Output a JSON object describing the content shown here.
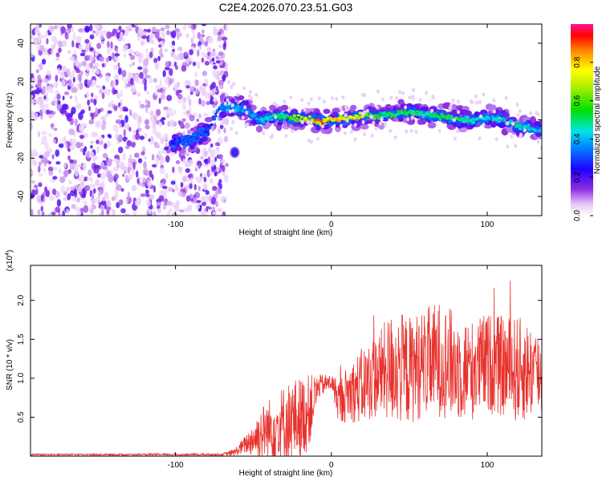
{
  "title": "C2E4.2026.070.23.51.G03",
  "colors": {
    "snr_line": "#e8322d",
    "axis": "#000000"
  },
  "colorbar": {
    "label": "Normalized spectral amplitude",
    "ticks": [
      "0.0",
      "0.2",
      "0.4",
      "0.6",
      "0.8"
    ],
    "tick_values": [
      0.0,
      0.2,
      0.4,
      0.6,
      0.8
    ],
    "range": [
      0.0,
      1.0
    ]
  },
  "chart_data": [
    {
      "type": "heatmap",
      "title": "",
      "xlabel": "Height of straight line (km)",
      "ylabel": "Frequency (Hz)",
      "xlim": [
        -193,
        135
      ],
      "ylim": [
        -50,
        50
      ],
      "xticks": [
        "-100",
        "0",
        "100"
      ],
      "xtick_values": [
        -100,
        0,
        100
      ],
      "yticks": [
        "-40",
        "-20",
        "0",
        "20",
        "40"
      ],
      "ytick_values": [
        -40,
        -20,
        0,
        20,
        40
      ],
      "noise_region_x": [
        -193,
        -67
      ],
      "ridge": {
        "description_x": [
          -100,
          -90,
          -80,
          -72,
          -65,
          -55,
          -45,
          -35,
          -25,
          -15,
          -5,
          0,
          10,
          20,
          30,
          40,
          50,
          60,
          70,
          80,
          90,
          100,
          110,
          120,
          130,
          135
        ],
        "freq": [
          -12,
          -10,
          -6,
          6,
          7,
          5,
          0,
          2,
          1,
          0,
          -1,
          0,
          1,
          2,
          2,
          3,
          4,
          3,
          2,
          1,
          0,
          1,
          0,
          -3,
          -5,
          -6
        ],
        "amplitude": [
          0.3,
          0.35,
          0.3,
          0.35,
          0.45,
          0.4,
          0.45,
          0.55,
          0.6,
          0.8,
          0.9,
          0.85,
          0.8,
          0.75,
          0.6,
          0.55,
          0.6,
          0.5,
          0.55,
          0.6,
          0.5,
          0.45,
          0.5,
          0.5,
          0.45,
          0.4
        ]
      },
      "secondary_blob": {
        "x": -62,
        "freq": -17,
        "amplitude": 0.3
      }
    },
    {
      "type": "line",
      "title": "",
      "xlabel": "Height of straight line (km)",
      "ylabel": "SNR (10 * v/v)",
      "multiplier_label": "(x10",
      "multiplier_exp": "4",
      "multiplier_close": ")",
      "xlim": [
        -193,
        135
      ],
      "ylim": [
        0,
        2.45
      ],
      "xticks": [
        "-100",
        "0",
        "100"
      ],
      "xtick_values": [
        -100,
        0,
        100
      ],
      "yticks": [
        "0.5",
        "1.0",
        "1.5",
        "2.0"
      ],
      "ytick_values": [
        0.5,
        1.0,
        1.5,
        2.0
      ],
      "series": [
        {
          "envelope_x": [
            -193,
            -70,
            -62,
            -55,
            -45,
            -35,
            -25,
            -15,
            -8,
            0,
            5,
            10,
            20,
            30,
            40,
            50,
            60,
            70,
            80,
            90,
            100,
            110,
            120,
            130,
            135
          ],
          "mean_y": [
            0.02,
            0.02,
            0.05,
            0.15,
            0.3,
            0.4,
            0.45,
            0.55,
            0.9,
            0.95,
            0.7,
            0.8,
            0.9,
            1.05,
            1.15,
            1.1,
            1.2,
            1.25,
            1.15,
            1.1,
            1.2,
            1.15,
            1.1,
            1.1,
            1.05
          ],
          "spread_y": [
            0.01,
            0.015,
            0.05,
            0.12,
            0.35,
            0.45,
            0.55,
            0.5,
            0.15,
            0.1,
            0.3,
            0.35,
            0.5,
            0.55,
            0.75,
            0.7,
            0.7,
            0.75,
            0.7,
            0.65,
            0.65,
            0.65,
            0.7,
            0.6,
            0.55
          ]
        }
      ]
    }
  ]
}
